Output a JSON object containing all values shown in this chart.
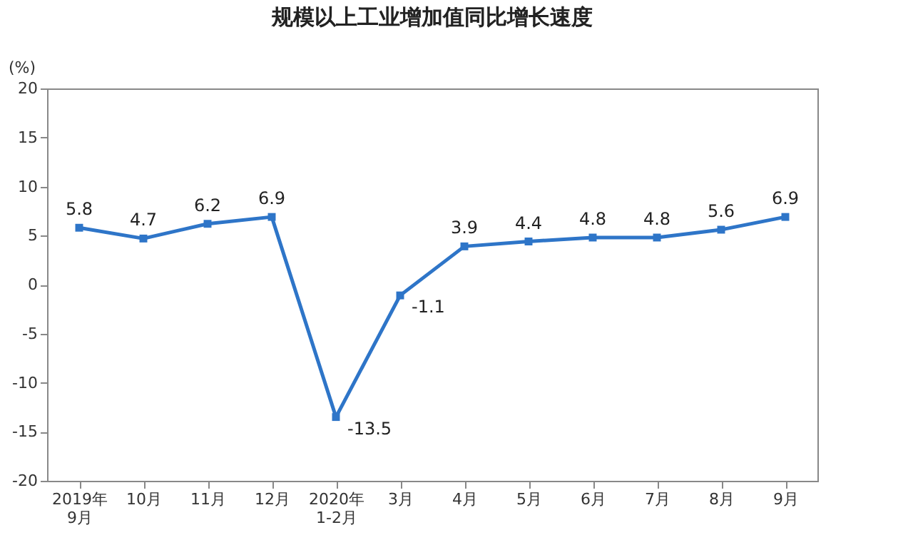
{
  "chart_data": {
    "type": "line",
    "title": "规模以上工业增加值同比增长速度",
    "ylabel": "(%)",
    "categories": [
      "2019年\n9月",
      "10月",
      "11月",
      "12月",
      "2020年\n1-2月",
      "3月",
      "4月",
      "5月",
      "6月",
      "7月",
      "8月",
      "9月"
    ],
    "series": [
      {
        "color": "#2e75c8",
        "values": [
          5.8,
          4.7,
          6.2,
          6.9,
          -13.5,
          -1.1,
          3.9,
          4.4,
          4.8,
          4.8,
          5.6,
          6.9
        ]
      }
    ],
    "ylim": [
      -20,
      20
    ],
    "yticks": [
      -20,
      -15,
      -10,
      -5,
      0,
      5,
      10,
      15,
      20
    ],
    "grid": false,
    "marker": "square",
    "line_style": "solid",
    "data_labels": true
  }
}
